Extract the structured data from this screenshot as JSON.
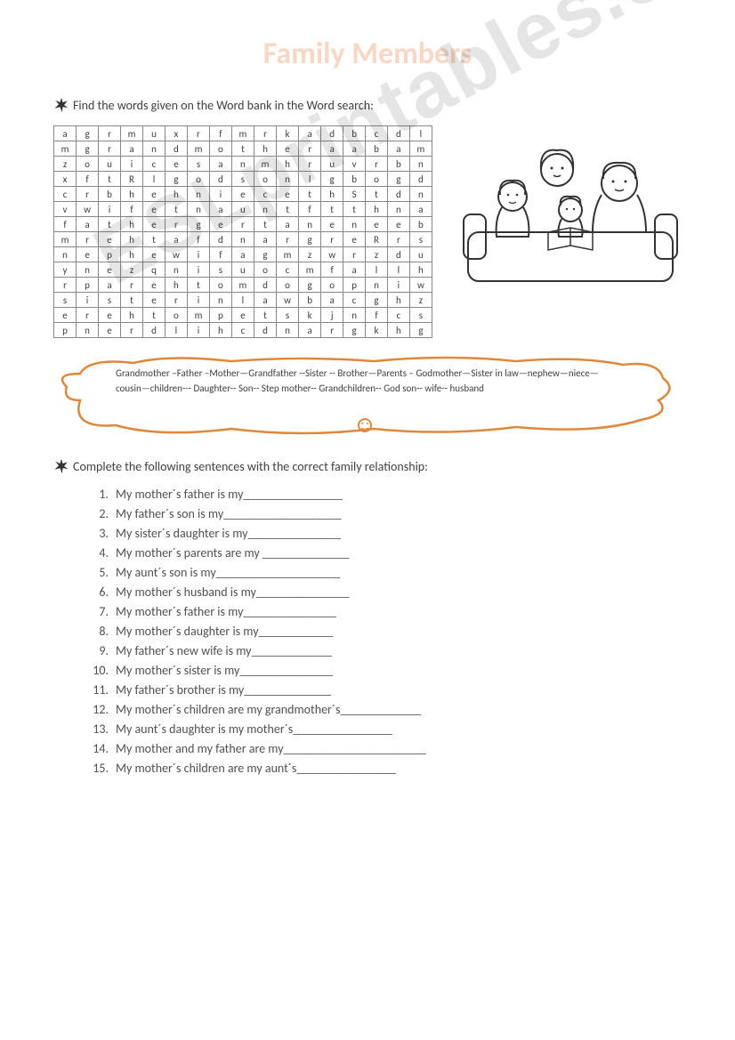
{
  "title": "Family Members",
  "instruction1": "Find the words given on the Word bank in the Word search:",
  "instruction2": "Complete the following sentences with the correct family relationship:",
  "wordsearch": {
    "rows": [
      [
        "a",
        "g",
        "r",
        "m",
        "u",
        "x",
        "r",
        "f",
        "m",
        "r",
        "k",
        "a",
        "d",
        "b",
        "c",
        "d",
        "l"
      ],
      [
        "m",
        "g",
        "r",
        "a",
        "n",
        "d",
        "m",
        "o",
        "t",
        "h",
        "e",
        "r",
        "a",
        "a",
        "b",
        "a",
        "m"
      ],
      [
        "z",
        "o",
        "u",
        "i",
        "c",
        "e",
        "s",
        "a",
        "n",
        "m",
        "h",
        "r",
        "u",
        "v",
        "r",
        "b",
        "n"
      ],
      [
        "x",
        "f",
        "t",
        "R",
        "l",
        "g",
        "o",
        "d",
        "s",
        "o",
        "n",
        "l",
        "g",
        "b",
        "o",
        "g",
        "d"
      ],
      [
        "c",
        "r",
        "b",
        "h",
        "e",
        "h",
        "n",
        "i",
        "e",
        "c",
        "e",
        "t",
        "h",
        "S",
        "t",
        "d",
        "n"
      ],
      [
        "v",
        "w",
        "i",
        "f",
        "e",
        "t",
        "n",
        "a",
        "u",
        "n",
        "t",
        "f",
        "t",
        "t",
        "h",
        "n",
        "a"
      ],
      [
        "f",
        "a",
        "t",
        "h",
        "e",
        "r",
        "g",
        "e",
        "r",
        "t",
        "a",
        "n",
        "e",
        "n",
        "e",
        "e",
        "b"
      ],
      [
        "m",
        "r",
        "e",
        "h",
        "t",
        "a",
        "f",
        "d",
        "n",
        "a",
        "r",
        "g",
        "r",
        "e",
        "R",
        "r",
        "s"
      ],
      [
        "n",
        "e",
        "p",
        "h",
        "e",
        "w",
        "i",
        "f",
        "a",
        "g",
        "m",
        "z",
        "w",
        "r",
        "z",
        "d",
        "u"
      ],
      [
        "y",
        "n",
        "e",
        "z",
        "q",
        "n",
        "i",
        "s",
        "u",
        "o",
        "c",
        "m",
        "f",
        "a",
        "l",
        "l",
        "h"
      ],
      [
        "r",
        "p",
        "a",
        "r",
        "e",
        "h",
        "t",
        "o",
        "m",
        "d",
        "o",
        "g",
        "o",
        "p",
        "n",
        "i",
        "w"
      ],
      [
        "s",
        "i",
        "s",
        "t",
        "e",
        "r",
        "i",
        "n",
        "l",
        "a",
        "w",
        "b",
        "a",
        "c",
        "g",
        "h",
        "z"
      ],
      [
        "e",
        "r",
        "e",
        "h",
        "t",
        "o",
        "m",
        "p",
        "e",
        "t",
        "s",
        "k",
        "j",
        "n",
        "f",
        "c",
        "s"
      ],
      [
        "p",
        "n",
        "e",
        "r",
        "d",
        "l",
        "i",
        "h",
        "c",
        "d",
        "n",
        "a",
        "r",
        "g",
        "k",
        "h",
        "g"
      ]
    ]
  },
  "wordbank": "Grandmother –Father –Mother—Grandfather --Sister -- Brother—Parents – Godmother—Sister in law—nephew—niece—cousin—children--- Daughter-- Son-- Step mother-- Grandchildren-- God son-- wife-- husband",
  "questions": [
    "My mother´s father is my________________",
    "My father´s son is my___________________",
    "My sister´s daughter is my_______________",
    "My mother´s parents are my ______________",
    "My aunt´s son is my____________________",
    "My mother´s husband is my_______________",
    "My mother´s father is my_______________",
    "My mother´s daughter is my____________",
    "My father´s new wife is my_____________",
    "My mother´s sister is my_______________",
    " My father´s brother is my______________",
    "My mother´s children are my grandmother´s_____________",
    "My aunt´s daughter is my mother´s________________",
    "My mother and my father are my_______________________",
    "My mother´s children are my aunt´s________________"
  ],
  "watermark": "ESLprintables.com",
  "colors": {
    "title": "#f8d8c4",
    "cloud_stroke": "#e0883a",
    "text": "#404040"
  }
}
